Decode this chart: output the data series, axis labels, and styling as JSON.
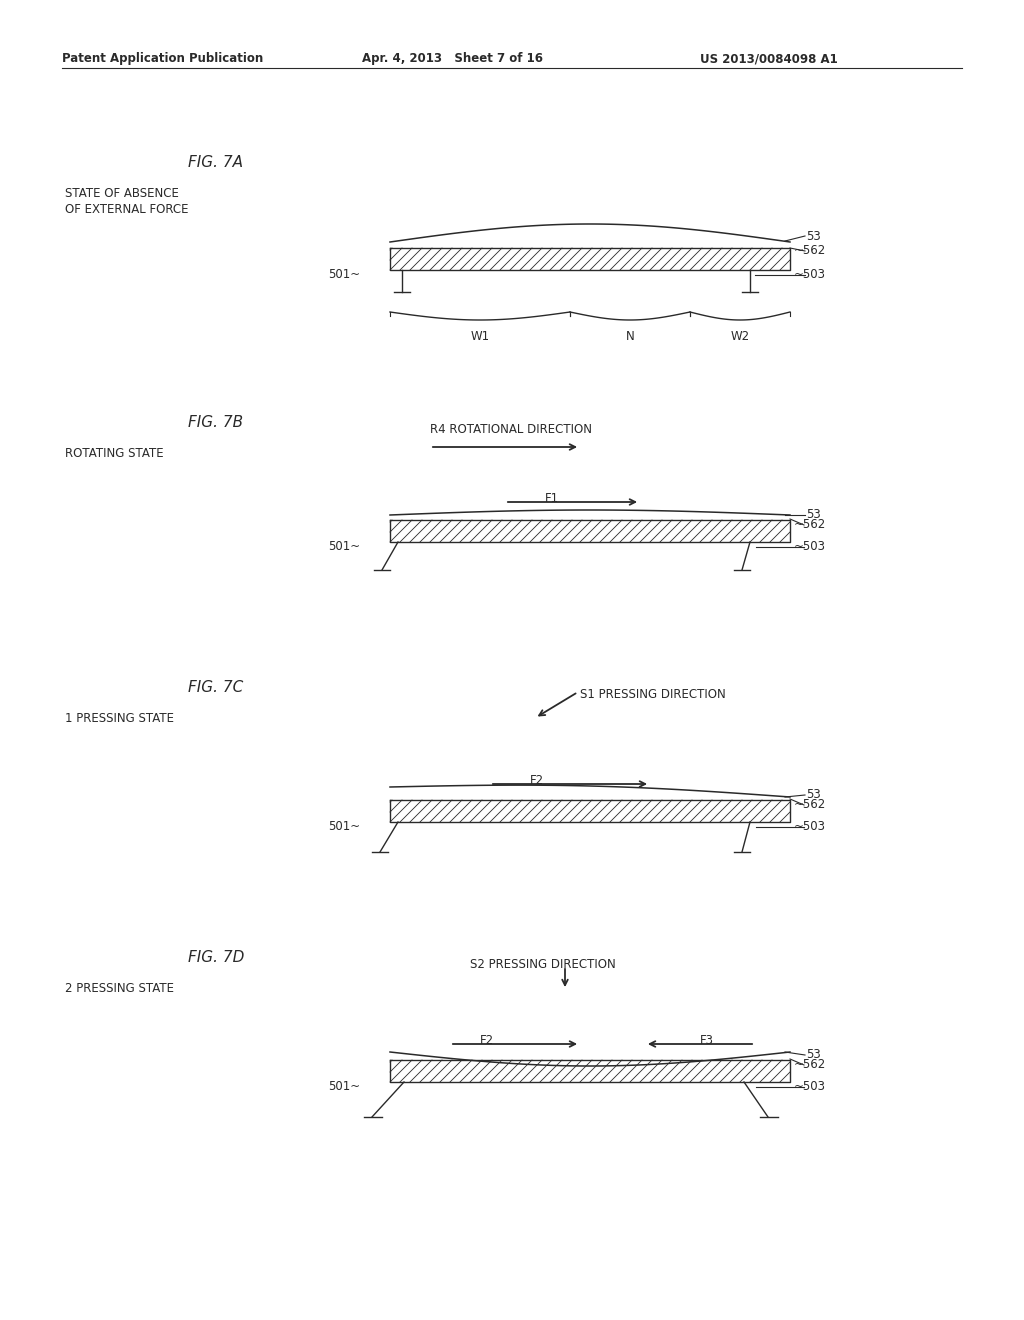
{
  "bg_color": "#ffffff",
  "lc": "#2a2a2a",
  "header_left": "Patent Application Publication",
  "header_mid": "Apr. 4, 2013   Sheet 7 of 16",
  "header_right": "US 2013/0084098 A1",
  "fig7a_title": "FIG. 7A",
  "fig7a_sub": "STATE OF ABSENCE\nOF EXTERNAL FORCE",
  "fig7b_title": "FIG. 7B",
  "fig7b_sub": "ROTATING STATE",
  "fig7c_title": "FIG. 7C",
  "fig7c_sub": "1 PRESSING STATE",
  "fig7d_title": "FIG. 7D",
  "fig7d_sub": "2 PRESSING STATE",
  "fig7b_dir": "R4 ROTATIONAL DIRECTION",
  "fig7c_dir": "S1 PRESSING DIRECTION",
  "fig7d_dir": "S2 PRESSING DIRECTION"
}
